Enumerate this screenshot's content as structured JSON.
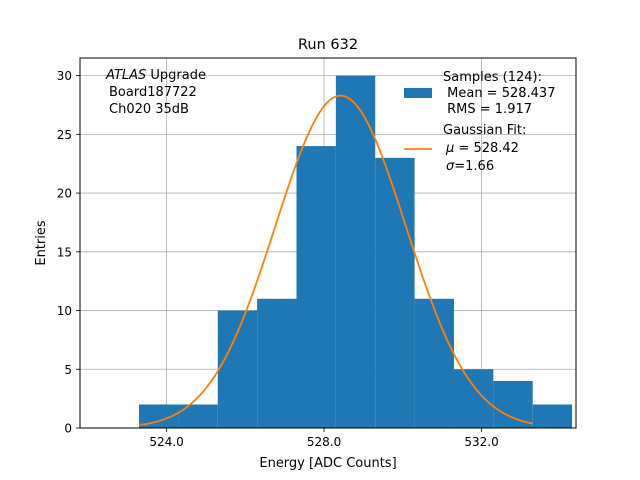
{
  "chart_data": {
    "type": "bar",
    "title": "Run 632",
    "xlabel": "Energy [ADC Counts]",
    "ylabel": "Entries",
    "xlim": [
      521.8,
      534.4
    ],
    "ylim": [
      0,
      31.5
    ],
    "xticks": [
      524.0,
      528.0,
      532.0
    ],
    "xtick_labels": [
      "524.0",
      "528.0",
      "532.0"
    ],
    "yticks": [
      0,
      5,
      10,
      15,
      20,
      25,
      30
    ],
    "ytick_labels": [
      "0",
      "5",
      "10",
      "15",
      "20",
      "25",
      "30"
    ],
    "grid": true,
    "bin_edges": [
      523.3,
      524.3,
      525.3,
      526.3,
      527.3,
      528.3,
      529.3,
      530.3,
      531.3,
      532.3,
      533.3,
      534.3
    ],
    "values": [
      2,
      2,
      10,
      11,
      24,
      30,
      23,
      11,
      5,
      4,
      2
    ],
    "bar_color": "#1f77b4",
    "fit_color": "#ff7f0e",
    "fit": {
      "mu": 528.42,
      "sigma": 1.66,
      "amplitude": 28.3,
      "x_range": [
        523.3,
        533.3
      ]
    },
    "annotation": {
      "line1_italic": "ATLAS",
      "line1_rest": " Upgrade",
      "line2": "Board187722",
      "line3": "Ch020 35dB"
    },
    "legend": {
      "placement": "top-right",
      "samples_title": "Samples (124):",
      "samples_mean": " Mean = 528.437",
      "samples_rms": " RMS = 1.917",
      "fit_title": "Gaussian Fit:",
      "fit_mu_symbol": "μ",
      "fit_mu_rest": " = 528.42",
      "fit_sigma_symbol": "σ",
      "fit_sigma_rest": "=1.66"
    }
  }
}
